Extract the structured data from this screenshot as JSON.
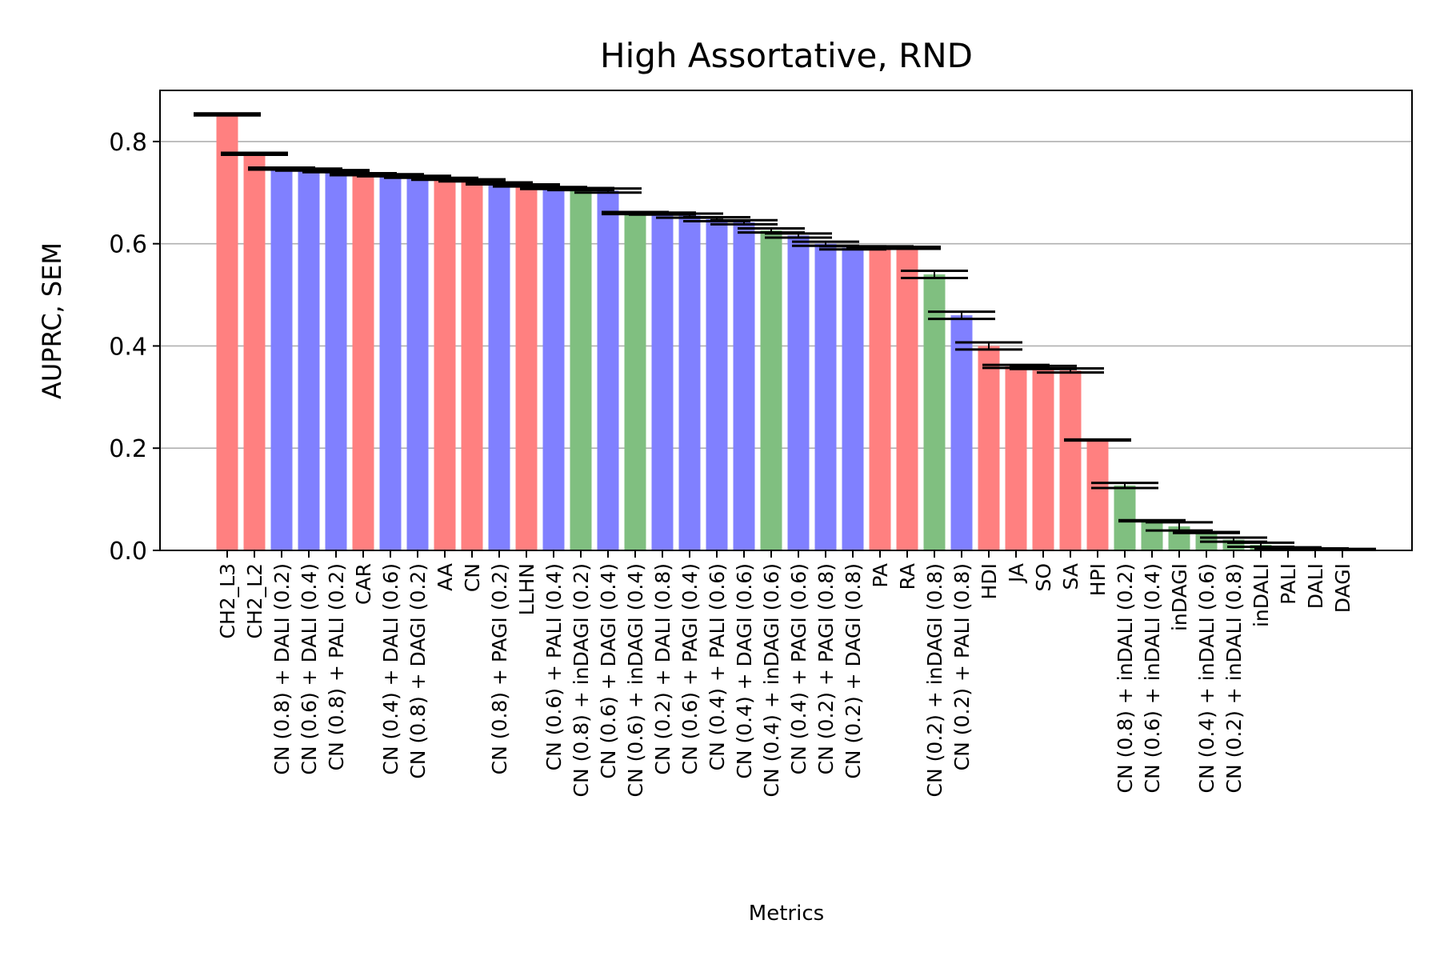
{
  "chart_data": {
    "type": "bar",
    "title": "High Assortative, RND",
    "xlabel": "Metrics",
    "ylabel": "AUPRC, SEM",
    "ylim": [
      0,
      0.9
    ],
    "yticks": [
      "0.0",
      "0.2",
      "0.4",
      "0.6",
      "0.8"
    ],
    "grid": "horizontal",
    "colors": {
      "red": "#ff8080",
      "blue": "#8080ff",
      "green": "#80bf80",
      "error": "#000000"
    },
    "categories": [
      "CH2_L3",
      "CH2_L2",
      "CN (0.8) + DALI (0.2)",
      "CN (0.6) + DALI (0.4)",
      "CN (0.8) + PALI (0.2)",
      "CAR",
      "CN (0.4) + DALI (0.6)",
      "CN (0.8) + DAGI (0.2)",
      "AA",
      "CN",
      "CN (0.8) + PAGI (0.2)",
      "LLHN",
      "CN (0.6) + PALI (0.4)",
      "CN (0.8) + inDAGI (0.2)",
      "CN (0.6) + DAGI (0.4)",
      "CN (0.6) + inDAGI (0.4)",
      "CN (0.2) + DALI (0.8)",
      "CN (0.6) + PAGI (0.4)",
      "CN (0.4) + PALI (0.6)",
      "CN (0.4) + DAGI (0.6)",
      "CN (0.4) + inDAGI (0.6)",
      "CN (0.4) + PAGI (0.6)",
      "CN (0.2) + PAGI (0.8)",
      "CN (0.2) + DAGI (0.8)",
      "PA",
      "RA",
      "CN (0.2) + inDAGI (0.8)",
      "CN (0.2) + PALI (0.8)",
      "HDI",
      "JA",
      "SO",
      "SA",
      "HPI",
      "CN (0.8) + inDALI (0.2)",
      "CN (0.6) + inDALI (0.4)",
      "inDAGI",
      "CN (0.4) + inDALI (0.6)",
      "CN (0.2) + inDALI (0.8)",
      "inDALI",
      "PALI",
      "DALI",
      "DAGI"
    ],
    "values": [
      0.853,
      0.776,
      0.747,
      0.745,
      0.742,
      0.736,
      0.734,
      0.731,
      0.727,
      0.724,
      0.718,
      0.714,
      0.709,
      0.707,
      0.704,
      0.66,
      0.659,
      0.655,
      0.648,
      0.642,
      0.626,
      0.616,
      0.6,
      0.592,
      0.593,
      0.592,
      0.54,
      0.46,
      0.4,
      0.36,
      0.358,
      0.352,
      0.216,
      0.127,
      0.058,
      0.047,
      0.035,
      0.021,
      0.011,
      0.005,
      0.003,
      0.002
    ],
    "errors": [
      0.002,
      0.002,
      0.002,
      0.002,
      0.002,
      0.002,
      0.002,
      0.002,
      0.002,
      0.002,
      0.002,
      0.002,
      0.002,
      0.002,
      0.004,
      0.002,
      0.002,
      0.004,
      0.004,
      0.004,
      0.004,
      0.004,
      0.004,
      0.003,
      0.002,
      0.002,
      0.007,
      0.007,
      0.007,
      0.003,
      0.003,
      0.004,
      0.001,
      0.005,
      0.001,
      0.008,
      0.001,
      0.004,
      0.004,
      0.001,
      0.001,
      0.001
    ],
    "bar_colors": [
      "red",
      "red",
      "blue",
      "blue",
      "blue",
      "red",
      "blue",
      "blue",
      "red",
      "red",
      "blue",
      "red",
      "blue",
      "green",
      "blue",
      "green",
      "blue",
      "blue",
      "blue",
      "blue",
      "green",
      "blue",
      "blue",
      "blue",
      "red",
      "red",
      "green",
      "blue",
      "red",
      "red",
      "red",
      "red",
      "red",
      "green",
      "green",
      "green",
      "green",
      "green",
      "green",
      "red",
      "blue",
      "blue"
    ]
  }
}
